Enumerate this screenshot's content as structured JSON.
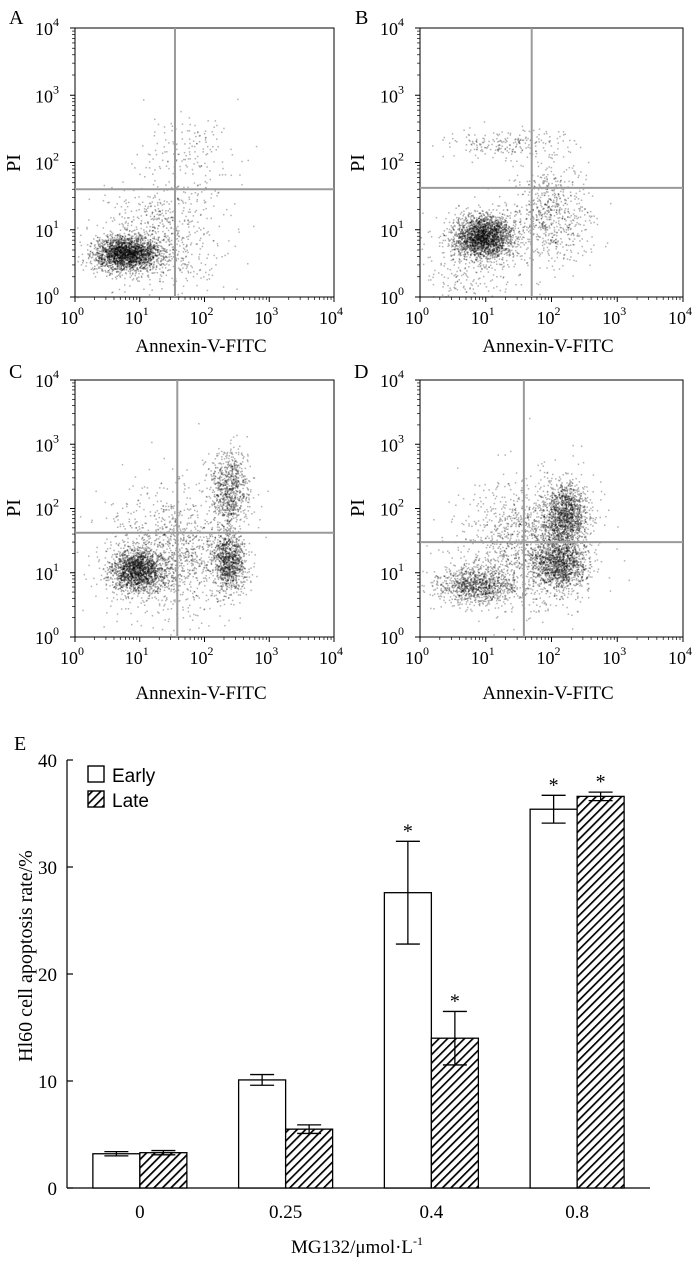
{
  "chart_data": [
    {
      "type": "scatter",
      "panel": "A",
      "xlabel": "Annexin-V-FITC",
      "ylabel": "PI",
      "xscale": "log",
      "yscale": "log",
      "xlim": [
        1,
        10000
      ],
      "ylim": [
        1,
        10000
      ],
      "quadrant_gate": {
        "x": 35,
        "y": 40
      },
      "clusters": [
        {
          "cx": 6,
          "cy": 4.5,
          "sx": 0.25,
          "sy": 0.12,
          "n": 2300
        },
        {
          "cx": 20,
          "cy": 8,
          "sx": 0.45,
          "sy": 0.4,
          "n": 700
        },
        {
          "cx": 60,
          "cy": 140,
          "sx": 0.35,
          "sy": 0.3,
          "n": 160
        }
      ],
      "x_ticks": [
        {
          "base": "10",
          "exp": "0"
        },
        {
          "base": "10",
          "exp": "1"
        },
        {
          "base": "10",
          "exp": "2"
        },
        {
          "base": "10",
          "exp": "3"
        },
        {
          "base": "10",
          "exp": "4"
        }
      ],
      "y_ticks": [
        {
          "base": "10",
          "exp": "0"
        },
        {
          "base": "10",
          "exp": "1"
        },
        {
          "base": "10",
          "exp": "2"
        },
        {
          "base": "10",
          "exp": "3"
        },
        {
          "base": "10",
          "exp": "4"
        }
      ]
    },
    {
      "type": "scatter",
      "panel": "B",
      "xlabel": "Annexin-V-FITC",
      "ylabel": "PI",
      "xscale": "log",
      "yscale": "log",
      "xlim": [
        1,
        10000
      ],
      "ylim": [
        1,
        10000
      ],
      "quadrant_gate": {
        "x": 50,
        "y": 42
      },
      "clusters": [
        {
          "cx": 9,
          "cy": 8,
          "sx": 0.22,
          "sy": 0.16,
          "n": 2300
        },
        {
          "cx": 100,
          "cy": 18,
          "sx": 0.3,
          "sy": 0.4,
          "n": 700
        },
        {
          "cx": 20,
          "cy": 190,
          "sx": 0.45,
          "sy": 0.1,
          "n": 200
        },
        {
          "cx": 5,
          "cy": 3,
          "sx": 0.4,
          "sy": 0.35,
          "n": 300
        }
      ],
      "x_ticks": [
        {
          "base": "10",
          "exp": "0"
        },
        {
          "base": "10",
          "exp": "1"
        },
        {
          "base": "10",
          "exp": "2"
        },
        {
          "base": "10",
          "exp": "3"
        },
        {
          "base": "10",
          "exp": "4"
        }
      ],
      "y_ticks": [
        {
          "base": "10",
          "exp": "0"
        },
        {
          "base": "10",
          "exp": "1"
        },
        {
          "base": "10",
          "exp": "2"
        },
        {
          "base": "10",
          "exp": "3"
        },
        {
          "base": "10",
          "exp": "4"
        }
      ]
    },
    {
      "type": "scatter",
      "panel": "C",
      "xlabel": "Annexin-V-FITC",
      "ylabel": "PI",
      "xscale": "log",
      "yscale": "log",
      "xlim": [
        1,
        10000
      ],
      "ylim": [
        1,
        10000
      ],
      "quadrant_gate": {
        "x": 38,
        "y": 42
      },
      "clusters": [
        {
          "cx": 9,
          "cy": 11,
          "sx": 0.2,
          "sy": 0.16,
          "n": 1700
        },
        {
          "cx": 230,
          "cy": 15,
          "sx": 0.13,
          "sy": 0.22,
          "n": 1000
        },
        {
          "cx": 240,
          "cy": 200,
          "sx": 0.15,
          "sy": 0.3,
          "n": 800
        },
        {
          "cx": 30,
          "cy": 20,
          "sx": 0.5,
          "sy": 0.5,
          "n": 1200
        }
      ],
      "x_ticks": [
        {
          "base": "10",
          "exp": "0"
        },
        {
          "base": "10",
          "exp": "1"
        },
        {
          "base": "10",
          "exp": "2"
        },
        {
          "base": "10",
          "exp": "3"
        },
        {
          "base": "10",
          "exp": "4"
        }
      ],
      "y_ticks": [
        {
          "base": "10",
          "exp": "0"
        },
        {
          "base": "10",
          "exp": "1"
        },
        {
          "base": "10",
          "exp": "2"
        },
        {
          "base": "10",
          "exp": "3"
        },
        {
          "base": "10",
          "exp": "4"
        }
      ]
    },
    {
      "type": "scatter",
      "panel": "D",
      "xlabel": "Annexin-V-FITC",
      "ylabel": "PI",
      "xscale": "log",
      "yscale": "log",
      "xlim": [
        1,
        10000
      ],
      "ylim": [
        1,
        10000
      ],
      "quadrant_gate": {
        "x": 38,
        "y": 30
      },
      "clusters": [
        {
          "cx": 7,
          "cy": 6.5,
          "sx": 0.3,
          "sy": 0.14,
          "n": 1000
        },
        {
          "cx": 130,
          "cy": 14,
          "sx": 0.2,
          "sy": 0.22,
          "n": 1300
        },
        {
          "cx": 160,
          "cy": 80,
          "sx": 0.17,
          "sy": 0.25,
          "n": 1300
        },
        {
          "cx": 40,
          "cy": 30,
          "sx": 0.5,
          "sy": 0.5,
          "n": 1300
        }
      ],
      "x_ticks": [
        {
          "base": "10",
          "exp": "0"
        },
        {
          "base": "10",
          "exp": "1"
        },
        {
          "base": "10",
          "exp": "2"
        },
        {
          "base": "10",
          "exp": "3"
        },
        {
          "base": "10",
          "exp": "4"
        }
      ],
      "y_ticks": [
        {
          "base": "10",
          "exp": "0"
        },
        {
          "base": "10",
          "exp": "1"
        },
        {
          "base": "10",
          "exp": "2"
        },
        {
          "base": "10",
          "exp": "3"
        },
        {
          "base": "10",
          "exp": "4"
        }
      ]
    },
    {
      "type": "bar",
      "panel": "E",
      "xlabel_main": "MG132/μmol·L",
      "xlabel_sup": "-1",
      "ylabel": "Hl60 cell apoptosis rate/%",
      "ylim": [
        0,
        40
      ],
      "y_ticks": [
        0,
        10,
        20,
        30,
        40
      ],
      "categories": [
        "0",
        "0.25",
        "0.4",
        "0.8"
      ],
      "legend": "top-left",
      "series": [
        {
          "name": "Early",
          "fill": "white",
          "values": [
            3.2,
            10.1,
            27.6,
            35.4
          ],
          "errors": [
            0.2,
            0.5,
            4.8,
            1.3
          ],
          "significant": [
            "",
            "",
            "*",
            "*"
          ]
        },
        {
          "name": "Late",
          "fill": "hatched",
          "values": [
            3.3,
            5.5,
            14.0,
            36.6
          ],
          "errors": [
            0.2,
            0.4,
            2.5,
            0.4
          ],
          "significant": [
            "",
            "",
            "*",
            "*"
          ]
        }
      ]
    }
  ]
}
